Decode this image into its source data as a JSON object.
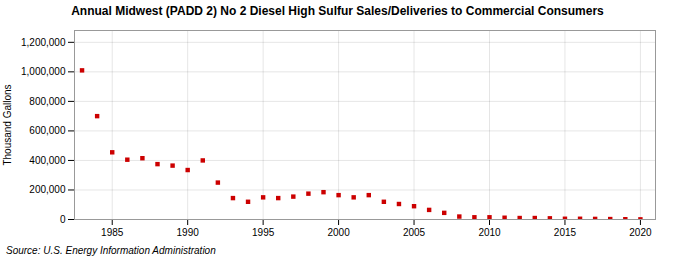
{
  "chart_data": {
    "type": "scatter",
    "title": "Annual Midwest (PADD 2) No 2 Diesel High Sulfur Sales/Deliveries to Commercial Consumers",
    "ylabel": "Thousand Gallons",
    "source": "Source: U.S. Energy Information Administration",
    "x": [
      1983,
      1984,
      1985,
      1986,
      1987,
      1988,
      1989,
      1990,
      1991,
      1992,
      1993,
      1994,
      1995,
      1996,
      1997,
      1998,
      1999,
      2000,
      2001,
      2002,
      2003,
      2004,
      2005,
      2006,
      2007,
      2008,
      2009,
      2010,
      2011,
      2012,
      2013,
      2014,
      2015,
      2016,
      2017,
      2018,
      2019,
      2020
    ],
    "values": [
      1010000,
      700000,
      455000,
      405000,
      415000,
      375000,
      365000,
      335000,
      400000,
      250000,
      145000,
      120000,
      150000,
      145000,
      155000,
      175000,
      185000,
      165000,
      150000,
      165000,
      120000,
      105000,
      90000,
      65000,
      45000,
      20000,
      15000,
      15000,
      12000,
      10000,
      10000,
      8000,
      5000,
      5000,
      4000,
      3000,
      2000,
      1000
    ],
    "color": "#cc0000",
    "marker": "square",
    "xlim": [
      1982.5,
      2021
    ],
    "xticks": [
      1985,
      1990,
      1995,
      2000,
      2005,
      2010,
      2015,
      2020
    ],
    "ylim": [
      0,
      1280000
    ],
    "yticks": [
      0,
      {
        "value": 200000,
        "label": "200,000"
      },
      {
        "value": 400000,
        "label": "400,000"
      },
      {
        "value": 600000,
        "label": "600,000"
      },
      {
        "value": 800000,
        "label": "800,000"
      },
      {
        "value": 1000000,
        "label": "1,000,000"
      },
      {
        "value": 1200000,
        "label": "1,200,000"
      }
    ],
    "grid": true
  }
}
